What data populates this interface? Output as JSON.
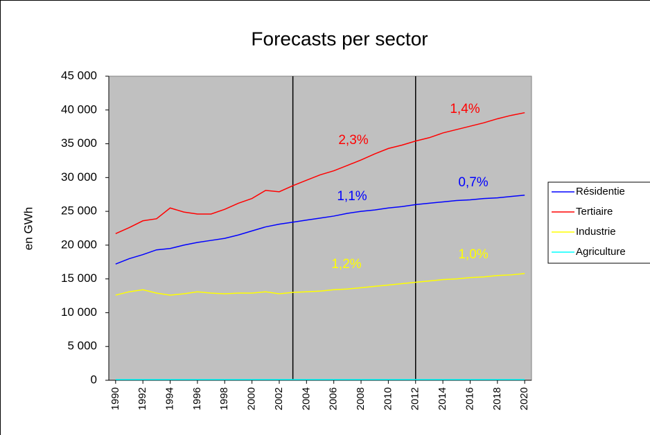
{
  "chart_data": {
    "type": "line",
    "title": "Forecasts per sector",
    "y_label": "en GWh",
    "x": [
      1990,
      1991,
      1992,
      1993,
      1994,
      1995,
      1996,
      1997,
      1998,
      1999,
      2000,
      2001,
      2002,
      2003,
      2004,
      2005,
      2006,
      2007,
      2008,
      2009,
      2010,
      2011,
      2012,
      2013,
      2014,
      2015,
      2016,
      2017,
      2018,
      2019,
      2020
    ],
    "xlim": [
      1989.5,
      2020.5
    ],
    "xticks": [
      1990,
      1992,
      1994,
      1996,
      1998,
      2000,
      2002,
      2004,
      2006,
      2008,
      2010,
      2012,
      2014,
      2016,
      2018,
      2020
    ],
    "ylim": [
      0,
      45000
    ],
    "yticks": [
      0,
      {
        "value": 5000,
        "label": "5 000"
      },
      {
        "value": 10000,
        "label": "10 000"
      },
      {
        "value": 15000,
        "label": "15 000"
      },
      {
        "value": 20000,
        "label": "20 000"
      },
      {
        "value": 25000,
        "label": "25 000"
      },
      {
        "value": 30000,
        "label": "30 000"
      },
      {
        "value": 35000,
        "label": "35 000"
      },
      {
        "value": 40000,
        "label": "40 000"
      },
      {
        "value": 45000,
        "label": "45 000"
      }
    ],
    "grid": false,
    "vlines": [
      2003,
      2012
    ],
    "series": [
      {
        "name": "Résidentie",
        "color": "#0000ff",
        "values": [
          17200,
          18000,
          18600,
          19300,
          19500,
          20000,
          20400,
          20700,
          21000,
          21500,
          22100,
          22700,
          23100,
          23400,
          23700,
          24000,
          24300,
          24700,
          25000,
          25200,
          25500,
          25700,
          26000,
          26200,
          26400,
          26600,
          26700,
          26900,
          27000,
          27200,
          27400
        ]
      },
      {
        "name": "Tertiaire",
        "color": "#ff0000",
        "values": [
          21700,
          22600,
          23600,
          23900,
          25500,
          24900,
          24600,
          24600,
          25300,
          26200,
          26900,
          28100,
          27900,
          28800,
          29600,
          30400,
          31000,
          31800,
          32600,
          33500,
          34300,
          34800,
          35400,
          35900,
          36600,
          37100,
          37600,
          38100,
          38700,
          39200,
          39600
        ]
      },
      {
        "name": "Industrie",
        "color": "#ffff00",
        "values": [
          12600,
          13100,
          13400,
          12900,
          12600,
          12800,
          13100,
          12900,
          12800,
          12900,
          12900,
          13100,
          12800,
          13000,
          13100,
          13200,
          13400,
          13500,
          13700,
          13900,
          14100,
          14300,
          14500,
          14700,
          14900,
          15000,
          15200,
          15300,
          15500,
          15600,
          15800
        ]
      },
      {
        "name": "Agriculture",
        "color": "#00ffff",
        "values": [
          100,
          100,
          100,
          100,
          100,
          100,
          100,
          100,
          100,
          100,
          100,
          100,
          100,
          100,
          100,
          100,
          100,
          100,
          100,
          100,
          100,
          100,
          100,
          100,
          100,
          100,
          100,
          100,
          100,
          100,
          100
        ]
      }
    ],
    "annotations": [
      {
        "text": "2,3%",
        "color": "#ff0000"
      },
      {
        "text": "1,4%",
        "color": "#ff0000"
      },
      {
        "text": "1,1%",
        "color": "#0000ff"
      },
      {
        "text": "0,7%",
        "color": "#0000ff"
      },
      {
        "text": "1,2%",
        "color": "#ffff00"
      },
      {
        "text": "1,0%",
        "color": "#ffff00"
      }
    ]
  }
}
